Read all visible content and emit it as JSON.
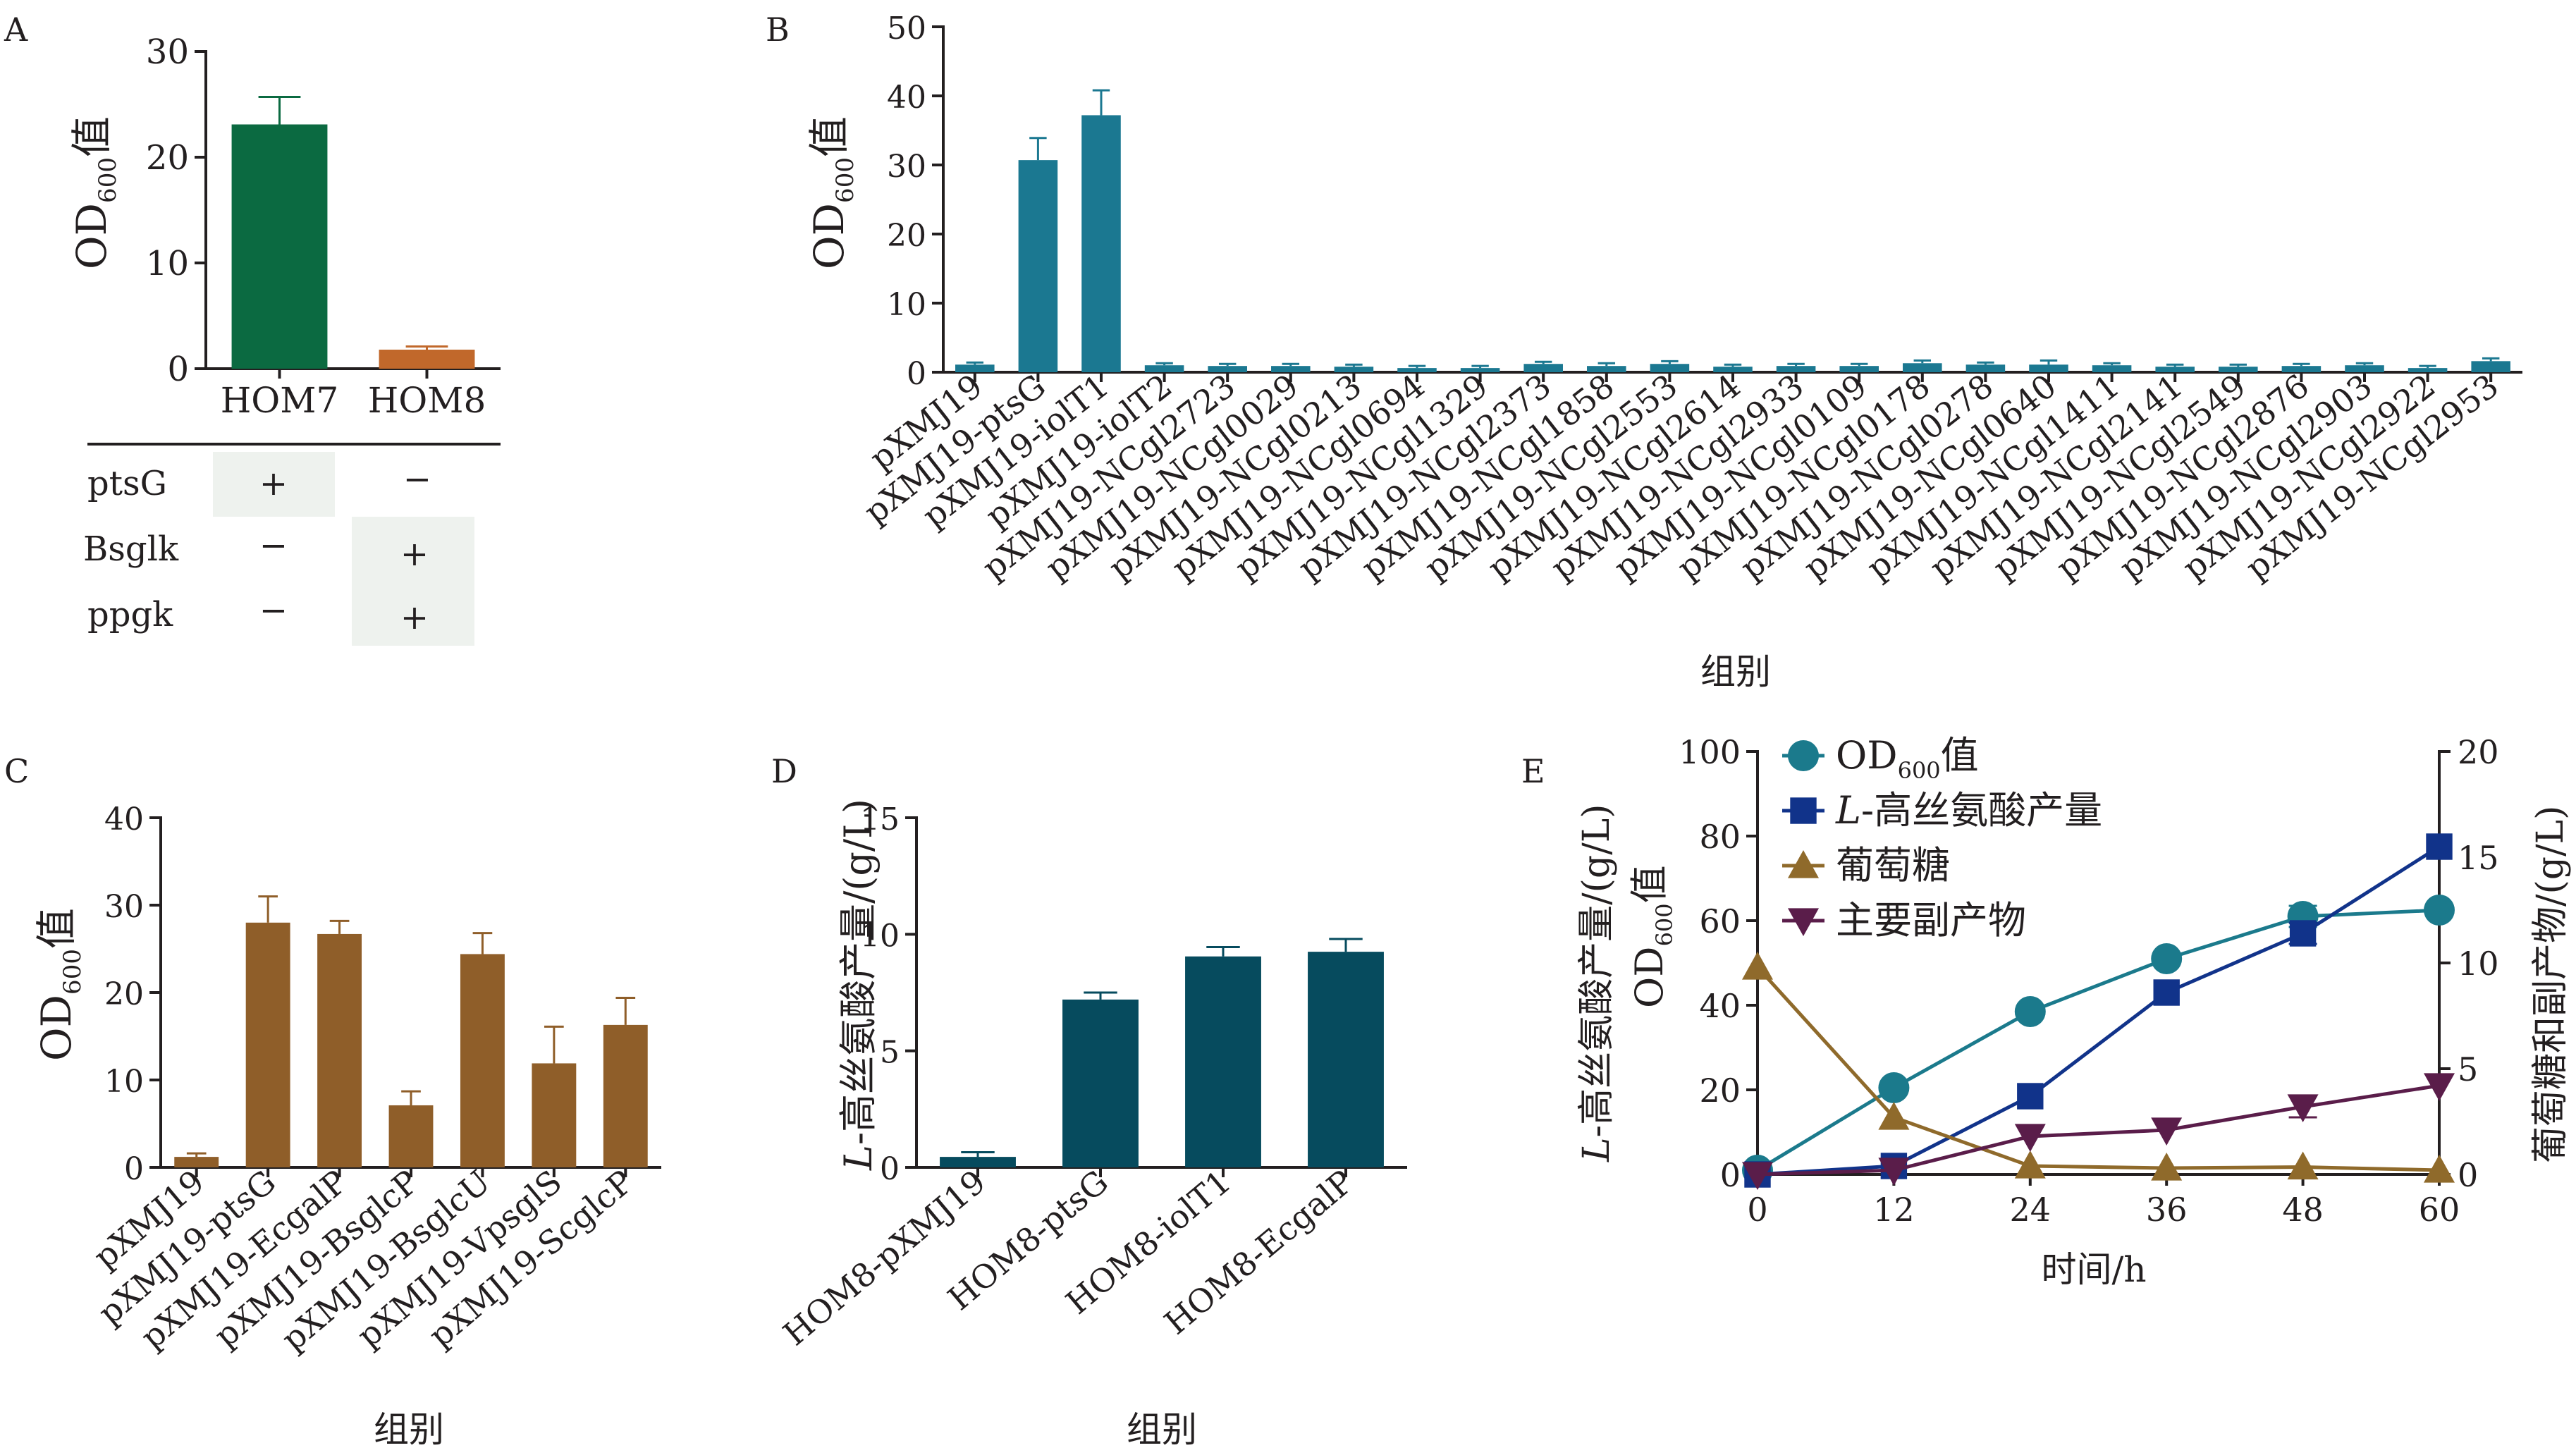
{
  "panels": {
    "A": {
      "letter": "A",
      "ylabel_main": "OD",
      "ylabel_sub": "600",
      "ylabel_suffix": "值",
      "table_rows": [
        {
          "label": "ptsG",
          "values": [
            "+",
            "−"
          ],
          "shaded": [
            true,
            false
          ]
        },
        {
          "label": "Bsglk",
          "values": [
            "−",
            "+"
          ],
          "shaded": [
            false,
            true
          ]
        },
        {
          "label": "ppgk",
          "values": [
            "−",
            "+"
          ],
          "shaded": [
            false,
            true
          ]
        }
      ]
    },
    "B": {
      "letter": "B",
      "ylabel_main": "OD",
      "ylabel_sub": "600",
      "ylabel_suffix": "值",
      "xlabel": "组别"
    },
    "C": {
      "letter": "C",
      "ylabel_main": "OD",
      "ylabel_sub": "600",
      "ylabel_suffix": "值",
      "xlabel": "组别"
    },
    "D": {
      "letter": "D",
      "ylabel_italic": "L",
      "ylabel_rest": "-高丝氨酸产量/(g/L)",
      "xlabel": "组别"
    },
    "E": {
      "letter": "E",
      "ylabel_left1_italic": "L",
      "ylabel_left1_rest": "-高丝氨酸产量/(g/L)",
      "ylabel_left2_main": "OD",
      "ylabel_left2_sub": "600",
      "ylabel_left2_suffix": "值",
      "ylabel_right": "葡萄糖和副产物/(g/L)",
      "xlabel": "时间/h"
    }
  },
  "chart_data": [
    {
      "panel": "A",
      "type": "bar",
      "categories": [
        "HOM7",
        "HOM8"
      ],
      "values": [
        23.1,
        1.8
      ],
      "errors": [
        2.6,
        0.3
      ],
      "colors": [
        "#0b6a41",
        "#c1682b"
      ],
      "ylim": [
        0,
        30
      ],
      "yticks": [
        0,
        10,
        20,
        30
      ]
    },
    {
      "panel": "B",
      "type": "bar",
      "categories": [
        "pXMJ19",
        "pXMJ19-ptsG",
        "pXMJ19-iolT1",
        "pXMJ19-iolT2",
        "pXMJ19-NCgl2723",
        "pXMJ19-NCgl0029",
        "pXMJ19-NCgl0213",
        "pXMJ19-NCgl0694",
        "pXMJ19-NCgl1329",
        "pXMJ19-NCgl2373",
        "pXMJ19-NCgl1858",
        "pXMJ19-NCgl2553",
        "pXMJ19-NCgl2614",
        "pXMJ19-NCgl2933",
        "pXMJ19-NCgl0109",
        "pXMJ19-NCgl0178",
        "pXMJ19-NCgl0278",
        "pXMJ19-NCgl0640",
        "pXMJ19-NCgl1411",
        "pXMJ19-NCgl2141",
        "pXMJ19-NCgl2549",
        "pXMJ19-NCgl2876",
        "pXMJ19-NCgl2903",
        "pXMJ19-NCgl2922",
        "pXMJ19-NCgl2953"
      ],
      "values": [
        1.1,
        30.7,
        37.2,
        1.0,
        0.9,
        0.9,
        0.8,
        0.6,
        0.6,
        1.2,
        0.9,
        1.2,
        0.8,
        0.9,
        0.9,
        1.3,
        1.1,
        1.1,
        1.0,
        0.8,
        0.8,
        0.9,
        1.0,
        0.6,
        1.6
      ],
      "errors": [
        0.3,
        3.2,
        3.6,
        0.3,
        0.3,
        0.3,
        0.3,
        0.3,
        0.3,
        0.3,
        0.4,
        0.4,
        0.3,
        0.3,
        0.3,
        0.4,
        0.3,
        0.6,
        0.3,
        0.3,
        0.3,
        0.3,
        0.3,
        0.3,
        0.4
      ],
      "color": "#1b7891",
      "ylim": [
        0,
        50
      ],
      "yticks": [
        0,
        10,
        20,
        30,
        40,
        50
      ]
    },
    {
      "panel": "C",
      "type": "bar",
      "categories": [
        "pXMJ19",
        "pXMJ19-ptsG",
        "pXMJ19-EcgalP",
        "pXMJ19-BsglcP",
        "pXMJ19-BsglcU",
        "pXMJ19-VpsglS",
        "pXMJ19-ScglcP"
      ],
      "values": [
        1.2,
        28.0,
        26.7,
        7.1,
        24.4,
        11.9,
        16.3
      ],
      "errors": [
        0.4,
        3.0,
        1.5,
        1.6,
        2.4,
        4.2,
        3.1
      ],
      "color": "#8f5e29",
      "ylim": [
        0,
        40
      ],
      "yticks": [
        0,
        10,
        20,
        30,
        40
      ]
    },
    {
      "panel": "D",
      "type": "bar",
      "categories": [
        "HOM8-pXMJ19",
        "HOM8-ptsG",
        "HOM8-iolT1",
        "HOM8-EcgalP"
      ],
      "values": [
        0.45,
        7.2,
        9.05,
        9.25
      ],
      "errors": [
        0.2,
        0.3,
        0.4,
        0.55
      ],
      "color": "#064b5e",
      "ylim": [
        0,
        15
      ],
      "yticks": [
        0,
        5,
        10,
        15
      ]
    },
    {
      "panel": "E",
      "type": "line",
      "x": [
        0,
        12,
        24,
        36,
        48,
        60
      ],
      "xlim": [
        0,
        60
      ],
      "xticks": [
        0,
        12,
        24,
        36,
        48,
        60
      ],
      "ylim_left": [
        0,
        100
      ],
      "yticks_left": [
        0,
        20,
        40,
        60,
        80,
        100
      ],
      "ylim_right": [
        0,
        20
      ],
      "yticks_right": [
        0,
        5,
        10,
        15,
        20
      ],
      "legend_position": "top-left",
      "series": [
        {
          "name_main": "OD",
          "name_sub": "600",
          "name_suffix": "值",
          "axis": "left",
          "marker": "circle",
          "color": "#1b7a8c",
          "values": [
            1,
            20.5,
            38.5,
            51,
            61,
            62.5
          ],
          "errors": [
            0,
            0,
            0,
            0,
            2.5,
            0
          ]
        },
        {
          "name_italic": "L",
          "name_rest": "-高丝氨酸产量",
          "axis": "left",
          "marker": "square",
          "color": "#11338a",
          "values": [
            0,
            2,
            18.5,
            43,
            57,
            77.5
          ],
          "errors": [
            0,
            0,
            0,
            0,
            2.5,
            0
          ]
        },
        {
          "name": "葡萄糖",
          "axis": "right",
          "marker": "triangle-up",
          "color": "#8f6a2b",
          "values": [
            9.8,
            2.7,
            0.4,
            0.3,
            0.35,
            0.2
          ],
          "errors": [
            0,
            0,
            0,
            0,
            0,
            0
          ]
        },
        {
          "name": "主要副产物",
          "axis": "right",
          "marker": "triangle-down",
          "color": "#5a1d4a",
          "values": [
            0,
            0.2,
            1.8,
            2.1,
            3.2,
            4.2
          ],
          "errors": [
            0,
            0,
            0,
            0,
            0.5,
            0
          ]
        }
      ]
    }
  ]
}
